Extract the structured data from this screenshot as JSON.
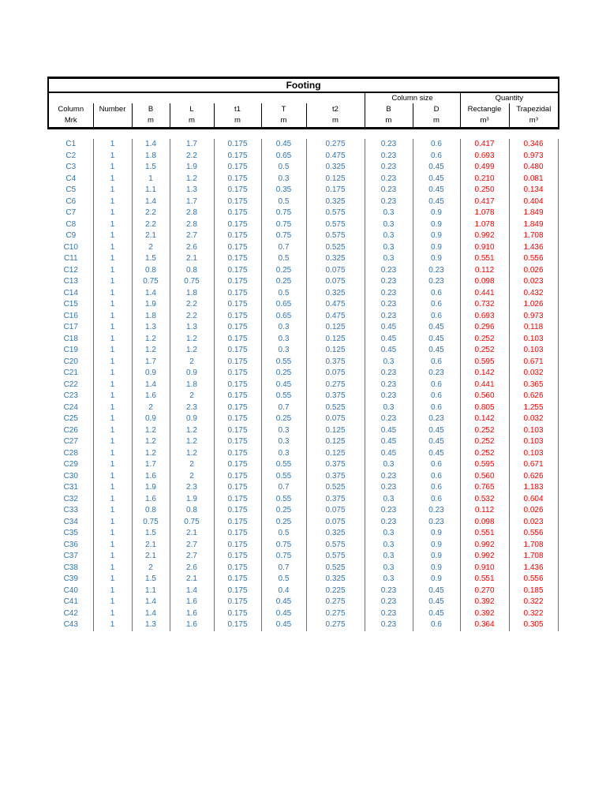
{
  "colors": {
    "data_blue": "#2E75B6",
    "data_red": "#FF0000",
    "grid_gray": "#6f6f6f",
    "border_black": "#000000"
  },
  "table": {
    "title": "Footing",
    "groups": [
      {
        "label": "",
        "span": 7
      },
      {
        "label": "Column size",
        "span": 2
      },
      {
        "label": "Quantity",
        "span": 2
      }
    ],
    "columns": [
      {
        "key": "mrk",
        "label": "Column",
        "unit": "Mrk"
      },
      {
        "key": "number",
        "label": "Number",
        "unit": ""
      },
      {
        "key": "b",
        "label": "B",
        "unit": "m"
      },
      {
        "key": "l",
        "label": "L",
        "unit": "m"
      },
      {
        "key": "t1",
        "label": "t1",
        "unit": "m"
      },
      {
        "key": "t",
        "label": "T",
        "unit": "m"
      },
      {
        "key": "t2",
        "label": "t2",
        "unit": "m"
      },
      {
        "key": "col-b",
        "label": "B",
        "unit": "m"
      },
      {
        "key": "col-d",
        "label": "D",
        "unit": "m"
      },
      {
        "key": "rectangle",
        "label": "Rectangle",
        "unit": "m³"
      },
      {
        "key": "trapezidal",
        "label": "Trapezidal",
        "unit": "m³"
      }
    ],
    "rows": [
      [
        "C1",
        "1",
        "1.4",
        "1.7",
        "0.175",
        "0.45",
        "0.275",
        "0.23",
        "0.6",
        "0.417",
        "0.346"
      ],
      [
        "C2",
        "1",
        "1.8",
        "2.2",
        "0.175",
        "0.65",
        "0.475",
        "0.23",
        "0.6",
        "0.693",
        "0.973"
      ],
      [
        "C3",
        "1",
        "1.5",
        "1.9",
        "0.175",
        "0.5",
        "0.325",
        "0.23",
        "0.45",
        "0.499",
        "0.480"
      ],
      [
        "C4",
        "1",
        "1",
        "1.2",
        "0.175",
        "0.3",
        "0.125",
        "0.23",
        "0.45",
        "0.210",
        "0.081"
      ],
      [
        "C5",
        "1",
        "1.1",
        "1.3",
        "0.175",
        "0.35",
        "0.175",
        "0.23",
        "0.45",
        "0.250",
        "0.134"
      ],
      [
        "C6",
        "1",
        "1.4",
        "1.7",
        "0.175",
        "0.5",
        "0.325",
        "0.23",
        "0.45",
        "0.417",
        "0.404"
      ],
      [
        "C7",
        "1",
        "2.2",
        "2.8",
        "0.175",
        "0.75",
        "0.575",
        "0.3",
        "0.9",
        "1.078",
        "1.849"
      ],
      [
        "C8",
        "1",
        "2.2",
        "2.8",
        "0.175",
        "0.75",
        "0.575",
        "0.3",
        "0.9",
        "1.078",
        "1.849"
      ],
      [
        "C9",
        "1",
        "2.1",
        "2.7",
        "0.175",
        "0.75",
        "0.575",
        "0.3",
        "0.9",
        "0.992",
        "1.708"
      ],
      [
        "C10",
        "1",
        "2",
        "2.6",
        "0.175",
        "0.7",
        "0.525",
        "0.3",
        "0.9",
        "0.910",
        "1.436"
      ],
      [
        "C11",
        "1",
        "1.5",
        "2.1",
        "0.175",
        "0.5",
        "0.325",
        "0.3",
        "0.9",
        "0.551",
        "0.556"
      ],
      [
        "C12",
        "1",
        "0.8",
        "0.8",
        "0.175",
        "0.25",
        "0.075",
        "0.23",
        "0.23",
        "0.112",
        "0.026"
      ],
      [
        "C13",
        "1",
        "0.75",
        "0.75",
        "0.175",
        "0.25",
        "0.075",
        "0.23",
        "0.23",
        "0.098",
        "0.023"
      ],
      [
        "C14",
        "1",
        "1.4",
        "1.8",
        "0.175",
        "0.5",
        "0.325",
        "0.23",
        "0.6",
        "0.441",
        "0.432"
      ],
      [
        "C15",
        "1",
        "1.9",
        "2.2",
        "0.175",
        "0.65",
        "0.475",
        "0.23",
        "0.6",
        "0.732",
        "1.026"
      ],
      [
        "C16",
        "1",
        "1.8",
        "2.2",
        "0.175",
        "0.65",
        "0.475",
        "0.23",
        "0.6",
        "0.693",
        "0.973"
      ],
      [
        "C17",
        "1",
        "1.3",
        "1.3",
        "0.175",
        "0.3",
        "0.125",
        "0.45",
        "0.45",
        "0.296",
        "0.118"
      ],
      [
        "C18",
        "1",
        "1.2",
        "1.2",
        "0.175",
        "0.3",
        "0.125",
        "0.45",
        "0.45",
        "0.252",
        "0.103"
      ],
      [
        "C19",
        "1",
        "1.2",
        "1.2",
        "0.175",
        "0.3",
        "0.125",
        "0.45",
        "0.45",
        "0.252",
        "0.103"
      ],
      [
        "C20",
        "1",
        "1.7",
        "2",
        "0.175",
        "0.55",
        "0.375",
        "0.3",
        "0.6",
        "0.595",
        "0.671"
      ],
      [
        "C21",
        "1",
        "0.9",
        "0.9",
        "0.175",
        "0.25",
        "0.075",
        "0.23",
        "0.23",
        "0.142",
        "0.032"
      ],
      [
        "C22",
        "1",
        "1.4",
        "1.8",
        "0.175",
        "0.45",
        "0.275",
        "0.23",
        "0.6",
        "0.441",
        "0.365"
      ],
      [
        "C23",
        "1",
        "1.6",
        "2",
        "0.175",
        "0.55",
        "0.375",
        "0.23",
        "0.6",
        "0.560",
        "0.626"
      ],
      [
        "C24",
        "1",
        "2",
        "2.3",
        "0.175",
        "0.7",
        "0.525",
        "0.3",
        "0.6",
        "0.805",
        "1.255"
      ],
      [
        "C25",
        "1",
        "0.9",
        "0.9",
        "0.175",
        "0.25",
        "0.075",
        "0.23",
        "0.23",
        "0.142",
        "0.032"
      ],
      [
        "C26",
        "1",
        "1.2",
        "1.2",
        "0.175",
        "0.3",
        "0.125",
        "0.45",
        "0.45",
        "0.252",
        "0.103"
      ],
      [
        "C27",
        "1",
        "1.2",
        "1.2",
        "0.175",
        "0.3",
        "0.125",
        "0.45",
        "0.45",
        "0.252",
        "0.103"
      ],
      [
        "C28",
        "1",
        "1.2",
        "1.2",
        "0.175",
        "0.3",
        "0.125",
        "0.45",
        "0.45",
        "0.252",
        "0.103"
      ],
      [
        "C29",
        "1",
        "1.7",
        "2",
        "0.175",
        "0.55",
        "0.375",
        "0.3",
        "0.6",
        "0.595",
        "0.671"
      ],
      [
        "C30",
        "1",
        "1.6",
        "2",
        "0.175",
        "0.55",
        "0.375",
        "0.23",
        "0.6",
        "0.560",
        "0.626"
      ],
      [
        "C31",
        "1",
        "1.9",
        "2.3",
        "0.175",
        "0.7",
        "0.525",
        "0.23",
        "0.6",
        "0.765",
        "1.183"
      ],
      [
        "C32",
        "1",
        "1.6",
        "1.9",
        "0.175",
        "0.55",
        "0.375",
        "0.3",
        "0.6",
        "0.532",
        "0.604"
      ],
      [
        "C33",
        "1",
        "0.8",
        "0.8",
        "0.175",
        "0.25",
        "0.075",
        "0.23",
        "0.23",
        "0.112",
        "0.026"
      ],
      [
        "C34",
        "1",
        "0.75",
        "0.75",
        "0.175",
        "0.25",
        "0.075",
        "0.23",
        "0.23",
        "0.098",
        "0.023"
      ],
      [
        "C35",
        "1",
        "1.5",
        "2.1",
        "0.175",
        "0.5",
        "0.325",
        "0.3",
        "0.9",
        "0.551",
        "0.556"
      ],
      [
        "C36",
        "1",
        "2.1",
        "2.7",
        "0.175",
        "0.75",
        "0.575",
        "0.3",
        "0.9",
        "0.992",
        "1.708"
      ],
      [
        "C37",
        "1",
        "2.1",
        "2.7",
        "0.175",
        "0.75",
        "0.575",
        "0.3",
        "0.9",
        "0.992",
        "1.708"
      ],
      [
        "C38",
        "1",
        "2",
        "2.6",
        "0.175",
        "0.7",
        "0.525",
        "0.3",
        "0.9",
        "0.910",
        "1.436"
      ],
      [
        "C39",
        "1",
        "1.5",
        "2.1",
        "0.175",
        "0.5",
        "0.325",
        "0.3",
        "0.9",
        "0.551",
        "0.556"
      ],
      [
        "C40",
        "1",
        "1.1",
        "1.4",
        "0.175",
        "0.4",
        "0.225",
        "0.23",
        "0.45",
        "0.270",
        "0.185"
      ],
      [
        "C41",
        "1",
        "1.4",
        "1.6",
        "0.175",
        "0.45",
        "0.275",
        "0.23",
        "0.45",
        "0.392",
        "0.322"
      ],
      [
        "C42",
        "1",
        "1.4",
        "1.6",
        "0.175",
        "0.45",
        "0.275",
        "0.23",
        "0.45",
        "0.392",
        "0.322"
      ],
      [
        "C43",
        "1",
        "1.3",
        "1.6",
        "0.175",
        "0.45",
        "0.275",
        "0.23",
        "0.6",
        "0.364",
        "0.305"
      ]
    ]
  }
}
